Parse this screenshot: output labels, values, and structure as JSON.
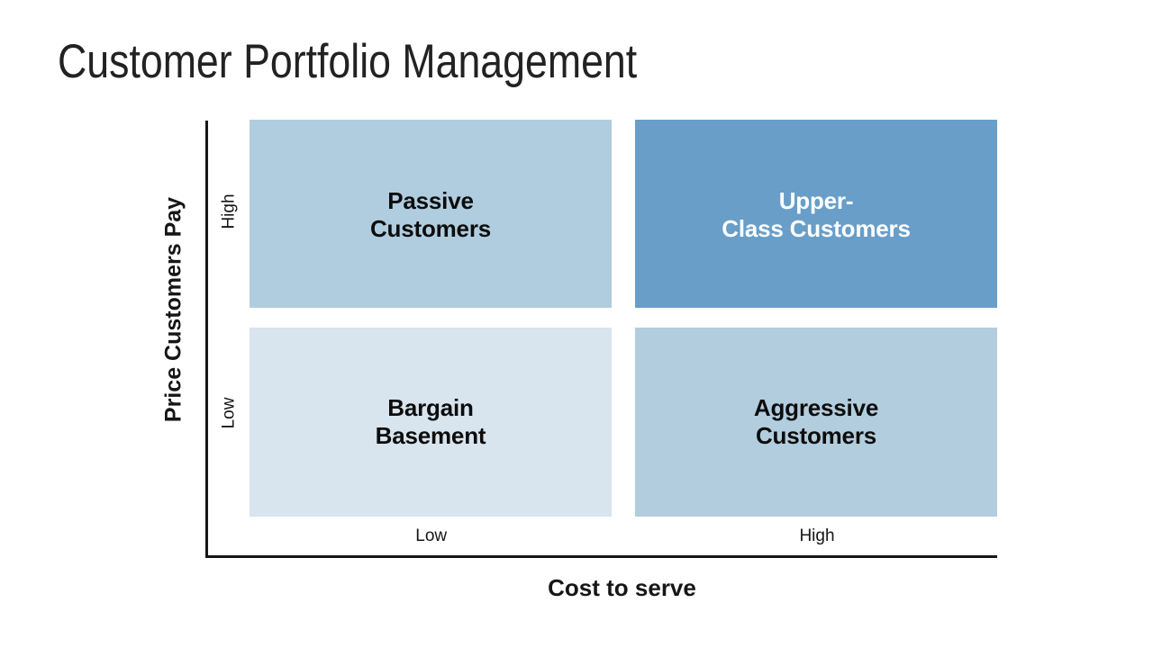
{
  "slide": {
    "title": "Customer Portfolio Management",
    "background_color": "#ffffff",
    "title_color": "#222222"
  },
  "matrix": {
    "axis_color": "#161616",
    "x_axis": {
      "title": "Cost to serve",
      "tick_low": "Low",
      "tick_high": "High"
    },
    "y_axis": {
      "title": "Price Customers Pay",
      "tick_high": "High",
      "tick_low": "Low"
    },
    "quadrants": {
      "top_left": {
        "line1": "Passive",
        "line2": "Customers",
        "fill": "#B0CDDF",
        "text_color": "#0d0d0d"
      },
      "top_right": {
        "line1": "Upper-",
        "line2": "Class Customers",
        "fill": "#689EC8",
        "text_color": "#ffffff"
      },
      "bottom_left": {
        "line1": "Bargain",
        "line2": "Basement",
        "fill": "#D8E4EE",
        "text_color": "#0d0d0d"
      },
      "bottom_right": {
        "line1": "Aggressive",
        "line2": "Customers",
        "fill": "#B2CDDE",
        "text_color": "#0d0d0d"
      }
    }
  }
}
